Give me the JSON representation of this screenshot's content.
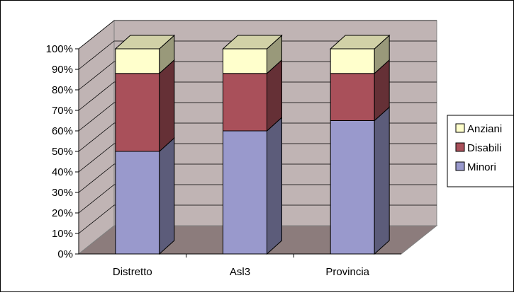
{
  "chart_data": {
    "type": "bar",
    "stacked": "percent",
    "three_d": true,
    "categories": [
      "Distretto",
      "Asl3",
      "Provincia"
    ],
    "series": [
      {
        "name": "Minori",
        "values": [
          50,
          60,
          65
        ],
        "color": "#9999cc"
      },
      {
        "name": "Disabili",
        "values": [
          38,
          28,
          23
        ],
        "color": "#a9505a"
      },
      {
        "name": "Anziani",
        "values": [
          12,
          12,
          12
        ],
        "color": "#ffffcc"
      }
    ],
    "ylim": [
      0,
      100
    ],
    "y_ticks": [
      "0%",
      "10%",
      "20%",
      "30%",
      "40%",
      "50%",
      "60%",
      "70%",
      "80%",
      "90%",
      "100%"
    ],
    "grid": true,
    "legend_position": "right",
    "wall_color": "#c0b4b4",
    "floor_color": "#8c7c7c",
    "title": "",
    "xlabel": "",
    "ylabel": ""
  }
}
